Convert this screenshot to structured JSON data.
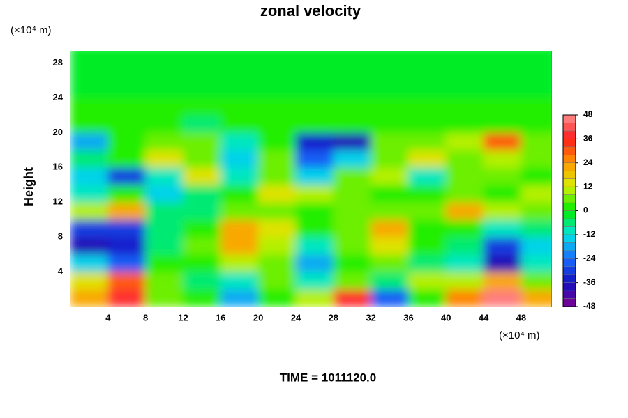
{
  "chart_data": {
    "type": "heatmap",
    "title": "zonal velocity",
    "ylabel": "Height",
    "y_unit": "(×10⁴ m)",
    "x_unit": "(×10⁴ m)",
    "annotation": "TIME = 1011120.0",
    "xlim": [
      0,
      51.2
    ],
    "ylim": [
      0,
      29.4
    ],
    "xticks": [
      4,
      8,
      12,
      16,
      20,
      24,
      28,
      32,
      36,
      40,
      44,
      48
    ],
    "yticks": [
      4,
      8,
      12,
      16,
      20,
      24,
      28
    ],
    "x": [
      2,
      6,
      10,
      14,
      18,
      22,
      26,
      30,
      34,
      38,
      42,
      46,
      50
    ],
    "y": [
      1,
      3,
      5,
      7,
      9,
      11,
      13,
      15,
      17,
      19,
      21,
      23,
      25,
      27,
      29
    ],
    "z": [
      [
        20,
        36,
        5,
        0,
        -20,
        0,
        10,
        36,
        -25,
        0,
        25,
        44,
        20
      ],
      [
        15,
        30,
        5,
        -5,
        -10,
        5,
        -10,
        5,
        -5,
        10,
        10,
        20,
        5
      ],
      [
        -15,
        -25,
        0,
        0,
        10,
        5,
        -20,
        0,
        5,
        -5,
        -10,
        -40,
        -10
      ],
      [
        -40,
        -35,
        -5,
        5,
        20,
        10,
        -10,
        5,
        15,
        0,
        -5,
        -30,
        -15
      ],
      [
        -30,
        -30,
        -5,
        0,
        20,
        15,
        0,
        5,
        20,
        0,
        0,
        -10,
        -5
      ],
      [
        10,
        20,
        -5,
        -5,
        5,
        5,
        0,
        5,
        5,
        5,
        20,
        10,
        5
      ],
      [
        -10,
        0,
        -15,
        -5,
        0,
        15,
        10,
        5,
        0,
        0,
        5,
        0,
        10
      ],
      [
        -15,
        -30,
        -10,
        15,
        -10,
        5,
        -15,
        5,
        10,
        -10,
        5,
        5,
        0
      ],
      [
        -5,
        0,
        15,
        5,
        -15,
        5,
        -25,
        -15,
        5,
        15,
        5,
        10,
        5
      ],
      [
        -20,
        0,
        5,
        5,
        -10,
        0,
        -35,
        -40,
        5,
        5,
        10,
        30,
        5
      ],
      [
        3,
        3,
        3,
        -5,
        3,
        3,
        3,
        3,
        3,
        3,
        3,
        3,
        3
      ],
      [
        0,
        0,
        0,
        0,
        0,
        0,
        0,
        0,
        0,
        0,
        0,
        0,
        0
      ],
      [
        -1,
        -1,
        -1,
        -1,
        -1,
        -1,
        -1,
        -1,
        -1,
        -1,
        -1,
        -1,
        -1
      ],
      [
        -1,
        -1,
        -1,
        -1,
        -1,
        -1,
        -1,
        -1,
        -1,
        -1,
        -1,
        -1,
        -1
      ],
      [
        -1,
        -1,
        -1,
        -1,
        -1,
        -1,
        -1,
        -1,
        -1,
        -1,
        -1,
        -1,
        -1
      ]
    ],
    "clim": [
      -48,
      48
    ],
    "level_step": 4,
    "cticks": [
      -48,
      -36,
      -24,
      -12,
      0,
      12,
      24,
      36,
      48
    ],
    "colormap": [
      "#7f0090",
      "#1010c0",
      "#1a6cff",
      "#00e6e6",
      "#00ee00",
      "#d8f000",
      "#ff9900",
      "#ff1a1a",
      "#ff9090"
    ]
  }
}
